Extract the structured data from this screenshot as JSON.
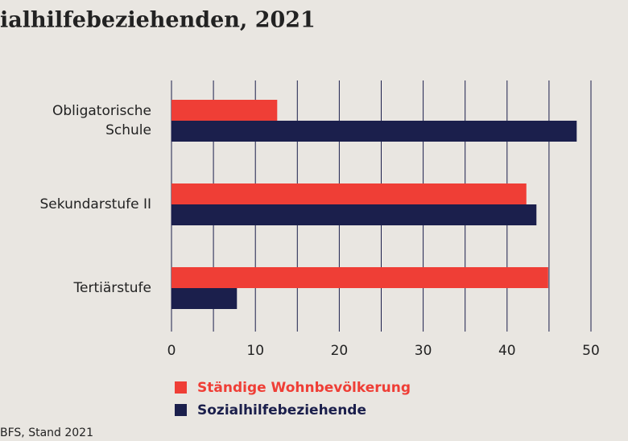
{
  "chart_data": {
    "type": "bar",
    "orientation": "horizontal",
    "title": "ialhilfebeziehenden, 2021",
    "categories": [
      "Obligatorische Schule",
      "Sekundarstufe II",
      "Tertiärstufe"
    ],
    "series": [
      {
        "name": "Ständige Wohnbevölkerung",
        "color": "#ef3e36",
        "values": [
          12.6,
          42.3,
          44.9
        ]
      },
      {
        "name": "Sozialhilfebeziehende",
        "color": "#1b1f4c",
        "values": [
          48.3,
          43.5,
          7.8
        ]
      }
    ],
    "xlim": [
      0,
      50
    ],
    "xticks": [
      0,
      10,
      20,
      30,
      40,
      50
    ],
    "minor_xticks": [
      5,
      15,
      25,
      35,
      45
    ],
    "grid": true,
    "source": "BFS, Stand 2021"
  }
}
